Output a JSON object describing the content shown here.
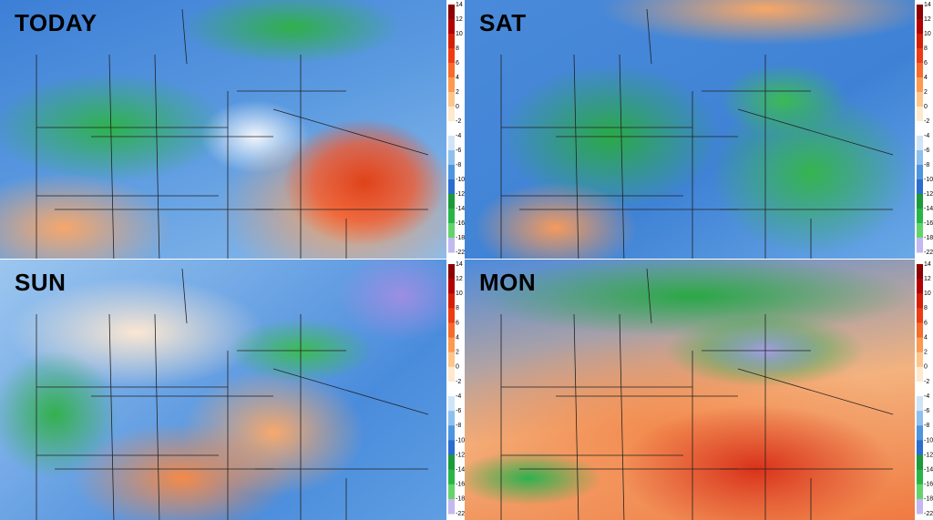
{
  "panels": [
    {
      "label": "TODAY"
    },
    {
      "label": "SAT"
    },
    {
      "label": "SUN"
    },
    {
      "label": "MON"
    }
  ],
  "colorbar": {
    "ticks": [
      14,
      12,
      10,
      8,
      6,
      4,
      2,
      0,
      -2,
      -4,
      -6,
      -8,
      -10,
      -12,
      -14,
      -16,
      -18,
      -22
    ]
  }
}
